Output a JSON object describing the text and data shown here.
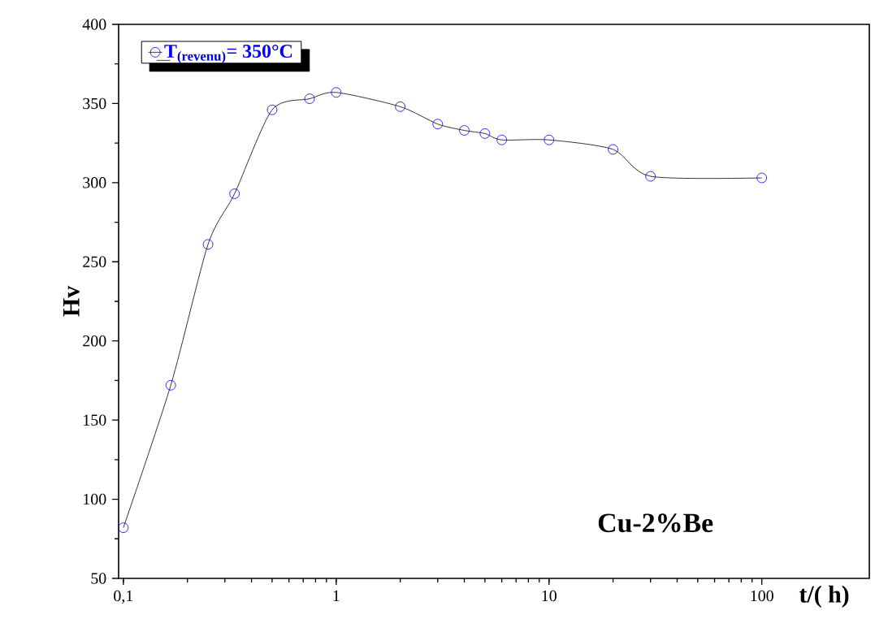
{
  "chart_data": {
    "type": "line",
    "xlabel": "t/( h)",
    "ylabel": "Hv",
    "x": [
      0.1,
      0.167,
      0.25,
      0.333,
      0.5,
      0.75,
      1,
      2,
      3,
      4,
      5,
      6,
      10,
      20,
      30,
      100
    ],
    "series": [
      {
        "name": "T$_{(revenu)}$= 350°C",
        "color": "#0000ff",
        "values": [
          82,
          172,
          261,
          293,
          346,
          353,
          357,
          348,
          337,
          333,
          331,
          327,
          327,
          321,
          304,
          303
        ]
      }
    ],
    "log": "x",
    "xlim": [
      0.095,
      320
    ],
    "ylim": [
      50,
      400
    ],
    "xticks": [
      {
        "value": 0.1,
        "label": "0,1"
      },
      1,
      10,
      100
    ],
    "yticks": [
      50,
      100,
      150,
      200,
      250,
      300,
      350,
      400
    ],
    "marker": "circle",
    "legend": "top left",
    "grid": false,
    "annotations": [
      "Cu-2%Be"
    ]
  }
}
